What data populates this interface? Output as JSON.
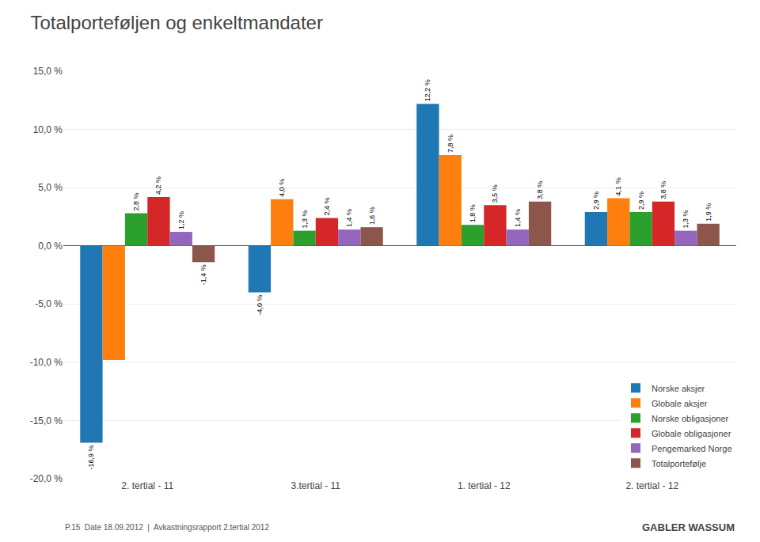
{
  "chart_data": {
    "type": "bar",
    "title": "Totalporteføljen og enkeltmandater",
    "categories": [
      "2. tertial - 11",
      "3.tertial - 11",
      "1. tertial - 12",
      "2. tertial - 12"
    ],
    "series": [
      {
        "name": "Norske aksjer",
        "values": [
          -16.9,
          -4.0,
          12.2,
          2.9
        ],
        "value_labels": [
          "-16,9 %",
          "-4,0 %",
          "12,2 %",
          "2,9 %"
        ]
      },
      {
        "name": "Globale aksjer",
        "values": [
          -9.8,
          4.0,
          7.8,
          4.1
        ],
        "value_labels": [
          null,
          "4,0 %",
          "7,8 %",
          "4,1 %"
        ]
      },
      {
        "name": "Norske obligasjoner",
        "values": [
          2.8,
          1.3,
          1.8,
          2.9
        ],
        "value_labels": [
          "2,8 %",
          "1,3 %",
          "1,8 %",
          "2,9 %"
        ]
      },
      {
        "name": "Globale obligasjoner",
        "values": [
          4.2,
          2.4,
          3.5,
          3.8
        ],
        "value_labels": [
          "4,2 %",
          "2,4 %",
          "3,5 %",
          "3,8 %"
        ]
      },
      {
        "name": "Pengemarked Norge",
        "values": [
          1.2,
          1.4,
          1.4,
          1.3
        ],
        "value_labels": [
          "1,2 %",
          "1,4 %",
          "1,4 %",
          "1,3 %"
        ]
      },
      {
        "name": "Totalportefølje",
        "values": [
          -1.4,
          1.6,
          3.8,
          1.9
        ],
        "value_labels": [
          "-1,4 %",
          "1,6 %",
          "3,8 %",
          "1,9 %"
        ]
      }
    ],
    "ylim": [
      -20.0,
      15.0
    ],
    "yticks": [
      {
        "value": -20.0,
        "label": "-20,0 %"
      },
      {
        "value": -15.0,
        "label": "-15,0 %"
      },
      {
        "value": -10.0,
        "label": "-10,0 %"
      },
      {
        "value": -5.0,
        "label": "-5,0 %"
      },
      {
        "value": 0.0,
        "label": "0,0 %"
      },
      {
        "value": 5.0,
        "label": "5,0 %"
      },
      {
        "value": 10.0,
        "label": "10,0 %"
      },
      {
        "value": 15.0,
        "label": "15,0 %"
      }
    ],
    "grid": true,
    "legend": "lower right",
    "data_labels": true,
    "annotations": [
      "P.15  Date 18.09.2012  |  Avkastningsrapport 2.tertial 2012",
      "GABLER WASSUM"
    ]
  }
}
